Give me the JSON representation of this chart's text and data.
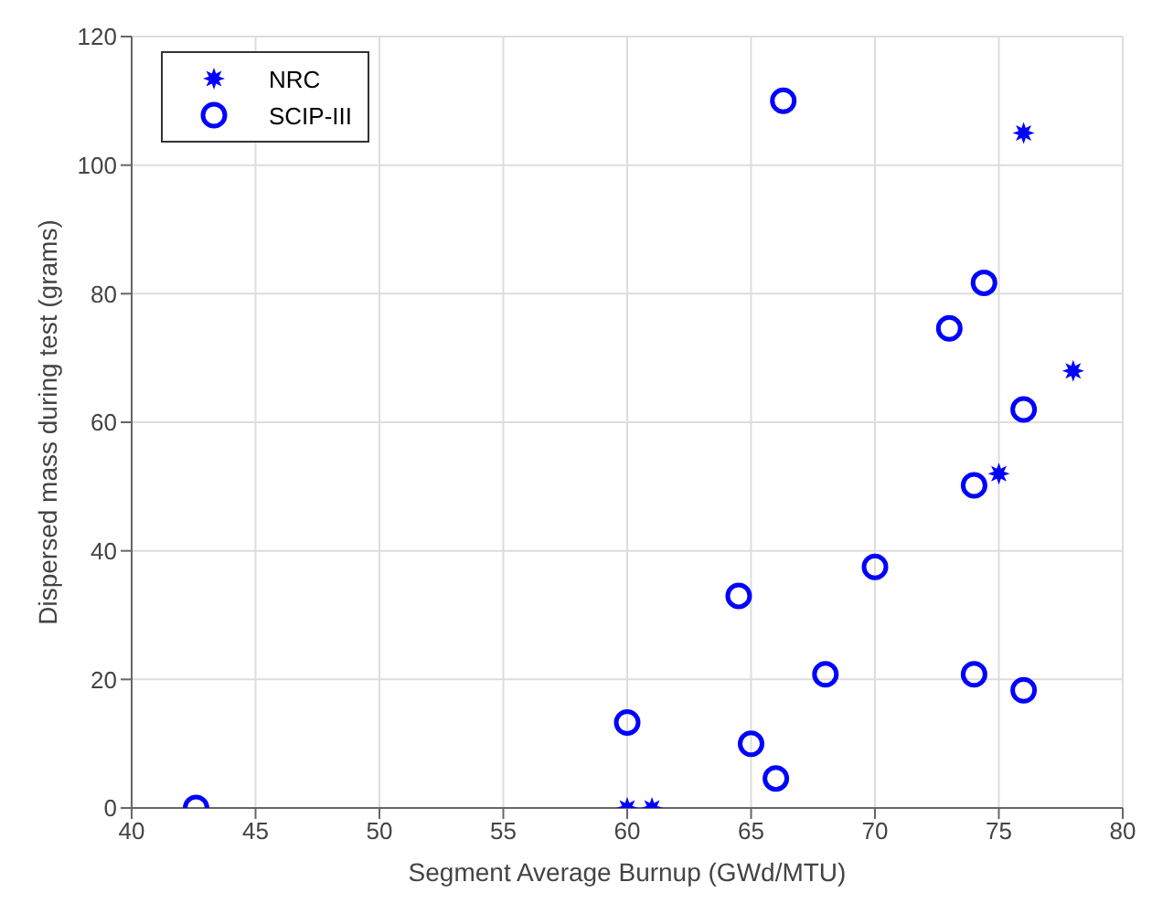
{
  "chart_data": {
    "type": "scatter",
    "xlabel": "Segment Average Burnup (GWd/MTU)",
    "ylabel": "Dispersed mass during test (grams)",
    "xlim": [
      40,
      80
    ],
    "xticks": [
      40,
      45,
      50,
      55,
      60,
      65,
      70,
      75,
      80
    ],
    "ylim": [
      0,
      120
    ],
    "yticks": [
      0,
      20,
      40,
      60,
      80,
      100,
      120
    ],
    "grid": true,
    "legend": "top left",
    "series": [
      {
        "name": "NRC",
        "color": "#0000ff",
        "marker": "star",
        "x": [
          60,
          61,
          75,
          76,
          78
        ],
        "values": [
          0,
          0,
          52,
          105,
          68
        ]
      },
      {
        "name": "SCIP-III",
        "color": "#0000ff",
        "marker": "circle",
        "x": [
          42.6,
          66.3,
          74.4,
          73,
          76,
          74,
          70,
          64.5,
          68,
          74,
          76,
          60,
          65,
          66
        ],
        "values": [
          0,
          110,
          81.7,
          74.6,
          62,
          50.2,
          37.5,
          33,
          20.8,
          20.8,
          18.3,
          13.3,
          10,
          4.6
        ]
      }
    ]
  }
}
